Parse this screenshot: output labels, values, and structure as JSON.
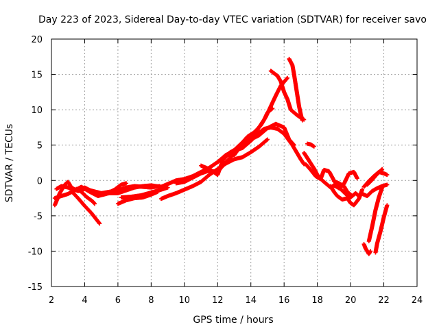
{
  "chart_data": {
    "type": "scatter",
    "title": "Day 223 of 2023, Sidereal Day-to-day VTEC variation (SDTVAR) for receiver savo",
    "xlabel": "GPS time / hours",
    "ylabel": "SDTVAR / TECUs",
    "xlim": [
      2,
      24
    ],
    "ylim": [
      -15,
      20
    ],
    "xticks": [
      2,
      4,
      6,
      8,
      10,
      12,
      14,
      16,
      18,
      20,
      22,
      24
    ],
    "yticks": [
      -15,
      -10,
      -5,
      0,
      5,
      10,
      15,
      20
    ],
    "grid": true,
    "marker": "+",
    "series": [
      {
        "name": "SDTVAR",
        "color": "#ff0000",
        "tracks": [
          [
            [
              2.2,
              -3.5
            ],
            [
              2.5,
              -1.8
            ],
            [
              2.8,
              -0.6
            ],
            [
              3.0,
              -0.2
            ],
            [
              3.2,
              -1.0
            ],
            [
              3.6,
              -1.5
            ],
            [
              4.0,
              -1.2
            ],
            [
              4.5,
              -1.5
            ],
            [
              5.0,
              -1.8
            ],
            [
              5.5,
              -1.6
            ],
            [
              6.0,
              -1.4
            ],
            [
              6.5,
              -1.0
            ],
            [
              7.0,
              -0.8
            ],
            [
              7.5,
              -0.9
            ],
            [
              8.0,
              -1.0
            ],
            [
              8.5,
              -0.8
            ]
          ],
          [
            [
              2.3,
              -1.2
            ],
            [
              2.6,
              -0.8
            ],
            [
              3.0,
              -1.0
            ],
            [
              3.5,
              -1.4
            ],
            [
              4.0,
              -1.0
            ],
            [
              4.5,
              -1.6
            ],
            [
              5.0,
              -2.0
            ],
            [
              5.5,
              -1.8
            ],
            [
              6.0,
              -1.8
            ],
            [
              6.5,
              -1.4
            ],
            [
              7.0,
              -1.0
            ],
            [
              7.5,
              -0.8
            ],
            [
              8.0,
              -0.7
            ],
            [
              8.6,
              -0.9
            ]
          ],
          [
            [
              2.2,
              -2.5
            ],
            [
              2.6,
              -2.2
            ],
            [
              3.0,
              -1.9
            ],
            [
              3.4,
              -1.4
            ],
            [
              3.8,
              -0.9
            ],
            [
              4.3,
              -1.6
            ],
            [
              4.8,
              -2.2
            ],
            [
              5.3,
              -1.9
            ],
            [
              5.8,
              -1.3
            ],
            [
              6.2,
              -0.6
            ],
            [
              6.5,
              -0.4
            ]
          ],
          [
            [
              3.2,
              -1.5
            ],
            [
              3.6,
              -2.5
            ],
            [
              4.0,
              -3.6
            ],
            [
              4.4,
              -4.6
            ],
            [
              4.8,
              -5.8
            ],
            [
              4.9,
              -6.1
            ]
          ],
          [
            [
              3.5,
              -1.2
            ],
            [
              3.8,
              -1.6
            ],
            [
              4.1,
              -2.3
            ],
            [
              4.5,
              -3.0
            ],
            [
              4.6,
              -3.3
            ]
          ],
          [
            [
              6.0,
              -3.3
            ],
            [
              6.5,
              -2.8
            ],
            [
              7.0,
              -2.5
            ],
            [
              7.5,
              -2.4
            ],
            [
              8.0,
              -2.0
            ],
            [
              8.4,
              -1.6
            ]
          ],
          [
            [
              6.2,
              -2.4
            ],
            [
              6.8,
              -2.3
            ],
            [
              7.4,
              -2.1
            ],
            [
              8.0,
              -1.7
            ],
            [
              8.6,
              -1.3
            ],
            [
              9.0,
              -1.0
            ]
          ],
          [
            [
              8.6,
              -2.6
            ],
            [
              9.0,
              -2.2
            ],
            [
              9.5,
              -1.8
            ],
            [
              10.0,
              -1.3
            ],
            [
              10.5,
              -0.8
            ],
            [
              11.0,
              -0.2
            ],
            [
              11.5,
              0.8
            ],
            [
              12.0,
              1.6
            ],
            [
              12.5,
              2.4
            ],
            [
              13.0,
              3.0
            ],
            [
              13.5,
              3.3
            ],
            [
              14.0,
              4.0
            ],
            [
              14.5,
              4.8
            ],
            [
              15.0,
              5.8
            ]
          ],
          [
            [
              8.5,
              -1.0
            ],
            [
              9.0,
              -0.5
            ],
            [
              9.5,
              0.0
            ],
            [
              10.0,
              0.2
            ],
            [
              10.5,
              0.6
            ],
            [
              11.0,
              1.2
            ],
            [
              11.5,
              1.8
            ],
            [
              12.0,
              2.6
            ],
            [
              12.5,
              3.6
            ],
            [
              13.0,
              4.2
            ],
            [
              13.5,
              4.6
            ],
            [
              14.0,
              5.6
            ],
            [
              14.4,
              6.6
            ],
            [
              14.8,
              7.3
            ],
            [
              15.2,
              7.5
            ],
            [
              15.6,
              7.3
            ],
            [
              16.0,
              6.6
            ],
            [
              16.5,
              5.0
            ],
            [
              16.8,
              3.8
            ],
            [
              17.0,
              3.0
            ],
            [
              17.2,
              2.3
            ]
          ],
          [
            [
              9.5,
              -0.4
            ],
            [
              10.0,
              -0.2
            ],
            [
              10.5,
              0.4
            ],
            [
              11.0,
              1.0
            ],
            [
              11.5,
              1.4
            ],
            [
              12.0,
              1.2
            ],
            [
              12.5,
              2.6
            ],
            [
              13.0,
              3.8
            ],
            [
              13.5,
              5.2
            ],
            [
              14.0,
              5.8
            ],
            [
              14.5,
              6.4
            ],
            [
              15.0,
              7.4
            ],
            [
              15.5,
              8.0
            ],
            [
              16.0,
              7.5
            ],
            [
              16.3,
              5.8
            ],
            [
              16.6,
              5.0
            ]
          ],
          [
            [
              11.0,
              2.1
            ],
            [
              11.5,
              1.6
            ],
            [
              12.0,
              0.8
            ],
            [
              12.3,
              2.8
            ],
            [
              12.7,
              3.9
            ],
            [
              13.0,
              4.3
            ],
            [
              13.5,
              5.4
            ],
            [
              13.8,
              6.2
            ],
            [
              14.2,
              6.8
            ],
            [
              14.6,
              7.8
            ],
            [
              14.9,
              9.0
            ],
            [
              15.2,
              10.5
            ],
            [
              15.5,
              12.0
            ],
            [
              15.8,
              13.4
            ],
            [
              16.2,
              14.5
            ]
          ],
          [
            [
              12.0,
              2.6
            ],
            [
              12.5,
              3.6
            ],
            [
              13.0,
              3.6
            ],
            [
              13.3,
              4.6
            ],
            [
              13.6,
              5.6
            ],
            [
              14.0,
              6.2
            ],
            [
              14.4,
              7.2
            ],
            [
              14.8,
              8.6
            ],
            [
              15.0,
              9.6
            ],
            [
              15.3,
              10.2
            ]
          ],
          [
            [
              15.2,
              15.5
            ],
            [
              15.6,
              14.8
            ],
            [
              15.8,
              14.0
            ],
            [
              16.0,
              12.5
            ],
            [
              16.2,
              11.5
            ],
            [
              16.4,
              10.0
            ],
            [
              16.6,
              9.6
            ],
            [
              16.8,
              9.2
            ],
            [
              17.0,
              8.9
            ],
            [
              17.2,
              8.6
            ]
          ],
          [
            [
              16.3,
              17.2
            ],
            [
              16.5,
              16.3
            ],
            [
              16.6,
              15.0
            ],
            [
              16.7,
              13.5
            ],
            [
              16.8,
              12.0
            ],
            [
              16.9,
              10.5
            ],
            [
              17.0,
              9.4
            ],
            [
              17.1,
              8.5
            ]
          ],
          [
            [
              17.2,
              3.9
            ],
            [
              17.5,
              2.8
            ],
            [
              17.8,
              1.7
            ],
            [
              18.0,
              0.8
            ],
            [
              18.3,
              0.0
            ],
            [
              18.5,
              -0.4
            ],
            [
              18.8,
              -1.0
            ],
            [
              19.0,
              -0.7
            ],
            [
              19.4,
              -1.2
            ],
            [
              19.7,
              -1.9
            ],
            [
              20.0,
              -2.4
            ],
            [
              20.3,
              -1.8
            ],
            [
              20.5,
              -2.2
            ]
          ],
          [
            [
              17.3,
              2.3
            ],
            [
              17.6,
              1.5
            ],
            [
              17.9,
              0.6
            ],
            [
              18.2,
              0.2
            ],
            [
              18.4,
              1.5
            ],
            [
              18.7,
              1.3
            ],
            [
              19.0,
              0.0
            ],
            [
              19.3,
              -1.1
            ],
            [
              19.6,
              -0.5
            ],
            [
              19.9,
              1.0
            ],
            [
              20.2,
              1.2
            ],
            [
              20.4,
              0.3
            ]
          ],
          [
            [
              17.4,
              5.2
            ],
            [
              17.6,
              5.1
            ],
            [
              17.8,
              4.8
            ]
          ],
          [
            [
              18.8,
              -0.8
            ],
            [
              19.0,
              -1.6
            ],
            [
              19.2,
              -2.2
            ],
            [
              19.5,
              -2.7
            ],
            [
              19.8,
              -2.5
            ],
            [
              20.0,
              -3.2
            ],
            [
              20.2,
              -3.5
            ],
            [
              20.5,
              -2.6
            ],
            [
              20.7,
              -1.3
            ]
          ],
          [
            [
              19.0,
              -0.1
            ],
            [
              19.3,
              -0.4
            ],
            [
              19.6,
              -0.8
            ],
            [
              19.8,
              -1.6
            ],
            [
              20.1,
              -2.2
            ]
          ],
          [
            [
              20.7,
              -1.9
            ],
            [
              21.0,
              -2.2
            ],
            [
              21.3,
              -1.5
            ],
            [
              21.6,
              -1.1
            ],
            [
              21.9,
              -0.8
            ],
            [
              22.2,
              -0.6
            ]
          ],
          [
            [
              20.8,
              -0.9
            ],
            [
              21.1,
              -0.1
            ],
            [
              21.4,
              0.6
            ],
            [
              21.7,
              1.2
            ],
            [
              22.0,
              1.0
            ],
            [
              22.2,
              0.8
            ]
          ],
          [
            [
              21.0,
              -0.6
            ],
            [
              21.3,
              0.1
            ],
            [
              21.6,
              0.9
            ],
            [
              21.9,
              1.6
            ]
          ],
          [
            [
              20.8,
              -9.0
            ],
            [
              20.9,
              -9.6
            ],
            [
              21.1,
              -10.4
            ],
            [
              21.2,
              -10.0
            ]
          ],
          [
            [
              21.1,
              -8.6
            ],
            [
              21.3,
              -6.5
            ],
            [
              21.5,
              -4.2
            ],
            [
              21.7,
              -2.4
            ],
            [
              21.9,
              -1.0
            ]
          ],
          [
            [
              21.5,
              -10.2
            ],
            [
              21.6,
              -8.9
            ],
            [
              21.8,
              -7.2
            ],
            [
              22.0,
              -5.2
            ],
            [
              22.2,
              -3.5
            ]
          ]
        ]
      }
    ]
  }
}
